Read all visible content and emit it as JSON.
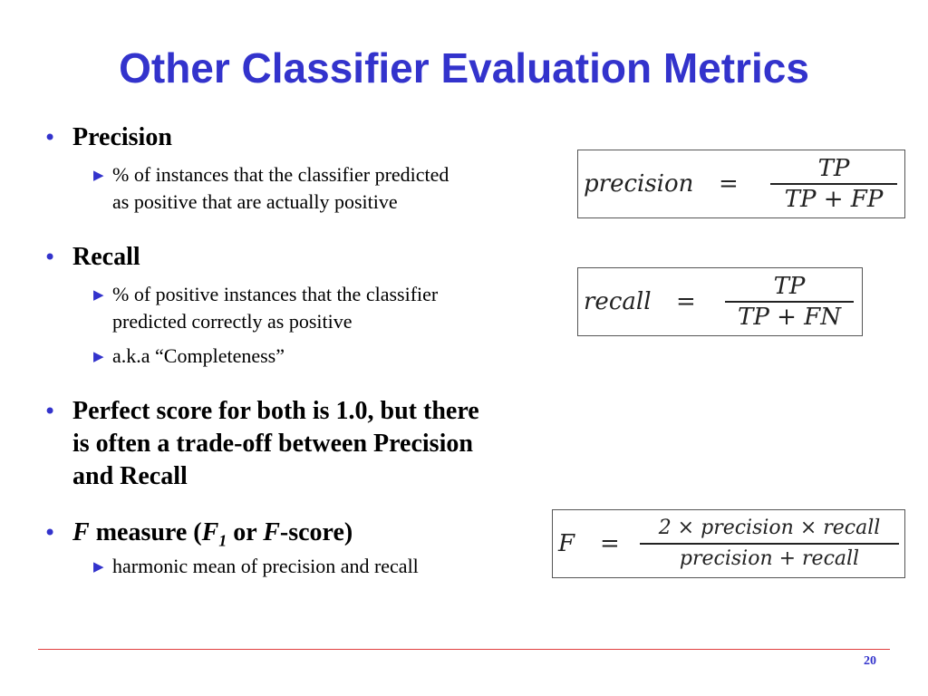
{
  "title": "Other Classifier Evaluation Metrics",
  "bullets": [
    {
      "text": "Precision",
      "subs": [
        {
          "line1": "% of instances that the classifier predicted",
          "line2": "as positive that are actually positive"
        }
      ]
    },
    {
      "text": "Recall",
      "subs": [
        {
          "line1": "% of positive instances that the classifier",
          "line2": "predicted correctly as positive"
        },
        {
          "line1": "a.k.a “Completeness”"
        }
      ]
    },
    {
      "line1": "Perfect score for both is 1.0, but there",
      "line2": "is often a trade-off between Precision",
      "line3": "and Recall"
    },
    {
      "f": "F",
      "measure": " measure (",
      "f1": "F",
      "sub1": "1",
      "or": " or ",
      "fscore": "F",
      "score": "-score)",
      "subs": [
        {
          "line1": "harmonic mean of precision and recall"
        }
      ]
    }
  ],
  "formulas": {
    "precision": {
      "lhs": "precision",
      "eq": "=",
      "num": "TP",
      "den": "TP + FP"
    },
    "recall": {
      "lhs": "recall",
      "eq": "=",
      "num": "TP",
      "den": "TP + FN"
    },
    "f": {
      "lhs": "F",
      "eq": "=",
      "num": "2 × precision × recall",
      "den": "precision + recall"
    }
  },
  "icons": {
    "bullet": "bullet-dot-icon",
    "sub_bullet": "triangle-right-icon"
  },
  "colors": {
    "title": "#3333cc",
    "bullet": "#3333cc",
    "footer_line": "#e04040",
    "page_number": "#3333cc"
  },
  "page_number": "20"
}
